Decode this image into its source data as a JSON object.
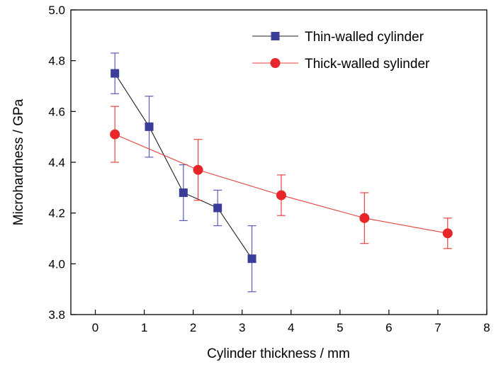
{
  "chart_data": {
    "type": "line",
    "xlabel": "Cylinder thickness / mm",
    "ylabel": "Microhardness / GPa",
    "xlim": [
      -0.5,
      8
    ],
    "ylim": [
      3.8,
      5.0
    ],
    "x_ticks": [
      "0",
      "1",
      "2",
      "3",
      "4",
      "5",
      "6",
      "7",
      "8"
    ],
    "y_ticks": [
      "3.8",
      "4.0",
      "4.2",
      "4.4",
      "4.6",
      "4.8",
      "5.0"
    ],
    "legend_position": "top-right",
    "series": [
      {
        "name": "Thin-walled cylinder",
        "marker": "square",
        "line_color": "#222222",
        "marker_color": "#3b3d9a",
        "errorbar_color": "#5a5cb8",
        "points": [
          {
            "x": 0.4,
            "y": 4.75,
            "err_low": 0.08,
            "err_high": 0.08
          },
          {
            "x": 1.1,
            "y": 4.54,
            "err_low": 0.12,
            "err_high": 0.12
          },
          {
            "x": 1.8,
            "y": 4.28,
            "err_low": 0.11,
            "err_high": 0.11
          },
          {
            "x": 2.5,
            "y": 4.22,
            "err_low": 0.07,
            "err_high": 0.07
          },
          {
            "x": 3.2,
            "y": 4.02,
            "err_low": 0.13,
            "err_high": 0.13
          }
        ]
      },
      {
        "name": "Thick-walled sylinder",
        "marker": "circle",
        "line_color": "#e8433f",
        "marker_color": "#e8262a",
        "errorbar_color": "#e8433f",
        "points": [
          {
            "x": 0.4,
            "y": 4.51,
            "err_low": 0.11,
            "err_high": 0.11
          },
          {
            "x": 2.1,
            "y": 4.37,
            "err_low": 0.12,
            "err_high": 0.12
          },
          {
            "x": 3.8,
            "y": 4.27,
            "err_low": 0.08,
            "err_high": 0.08
          },
          {
            "x": 5.5,
            "y": 4.18,
            "err_low": 0.1,
            "err_high": 0.1
          },
          {
            "x": 7.2,
            "y": 4.12,
            "err_low": 0.06,
            "err_high": 0.06
          }
        ]
      }
    ]
  }
}
